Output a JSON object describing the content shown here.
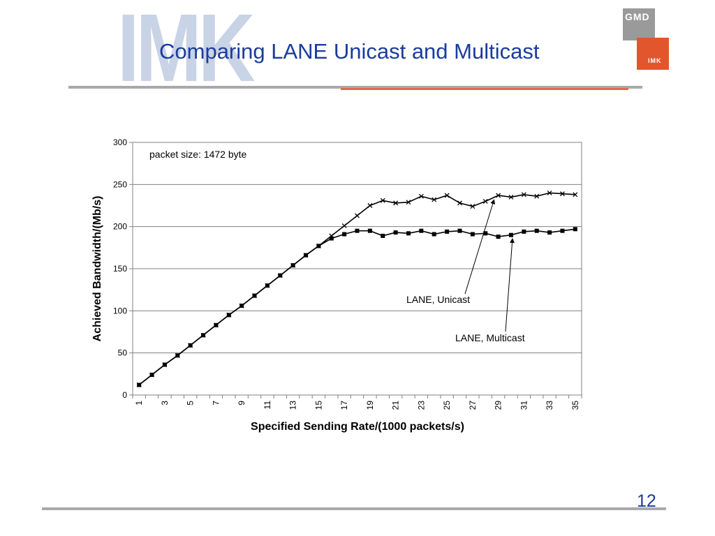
{
  "slide": {
    "watermark": "IMK",
    "title": "Comparing LANE Unicast and Multicast",
    "page_number": "12",
    "logo": {
      "top_text": "GMD",
      "bottom_text": "IMK",
      "colors": {
        "grey": "#9a9a9a",
        "red": "#e2562e"
      }
    },
    "colors": {
      "title": "#1a3c9c",
      "rule_grey": "#a9a9a9",
      "rule_red": "#e06a50"
    }
  },
  "chart_data": {
    "type": "line",
    "title": "",
    "xlabel": "Specified Sending Rate/(1000 packets/s)",
    "ylabel": "Achieved Bandwidth/(Mb/s)",
    "ylim": [
      0,
      300
    ],
    "y_ticks": [
      0,
      50,
      100,
      150,
      200,
      250,
      300
    ],
    "x_tick_labels": [
      "1",
      "3",
      "5",
      "7",
      "9",
      "11",
      "13",
      "15",
      "17",
      "19",
      "21",
      "23",
      "25",
      "27",
      "29",
      "31",
      "33",
      "35"
    ],
    "grid": true,
    "legend": "none",
    "x": [
      1,
      2,
      3,
      4,
      5,
      6,
      7,
      8,
      9,
      10,
      11,
      12,
      13,
      14,
      15,
      16,
      17,
      18,
      19,
      20,
      21,
      22,
      23,
      24,
      25,
      26,
      27,
      28,
      29,
      30,
      31,
      32,
      33,
      34,
      35
    ],
    "series": [
      {
        "name": "LANE, Unicast",
        "marker": "x",
        "values": [
          12,
          24,
          36,
          47,
          59,
          71,
          83,
          95,
          106,
          118,
          130,
          142,
          154,
          166,
          177,
          189,
          201,
          213,
          225,
          231,
          228,
          229,
          236,
          232,
          237,
          228,
          224,
          230,
          237,
          235,
          238,
          236,
          240,
          239,
          238
        ]
      },
      {
        "name": "LANE, Multicast",
        "marker": "diamond",
        "values": [
          12,
          24,
          36,
          47,
          59,
          71,
          83,
          95,
          106,
          118,
          130,
          142,
          154,
          166,
          177,
          186,
          191,
          195,
          195,
          189,
          193,
          192,
          195,
          191,
          194,
          195,
          191,
          192,
          188,
          190,
          194,
          195,
          193,
          195,
          197
        ]
      }
    ],
    "annotations": [
      {
        "text": "packet size: 1472 byte"
      },
      {
        "text": "LANE, Unicast",
        "points_to_x": 29,
        "series": 0
      },
      {
        "text": "LANE, Multicast",
        "points_to_x": 30,
        "series": 1
      }
    ]
  }
}
